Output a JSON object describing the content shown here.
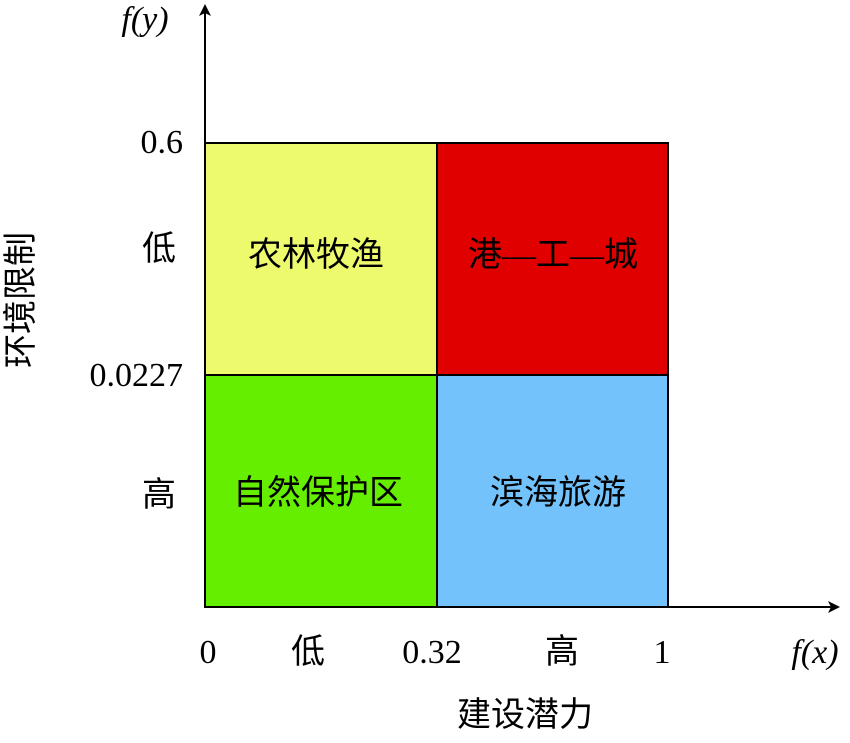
{
  "axes": {
    "y_label": "f(y)",
    "x_label": "f(x)",
    "y_title": "环境限制",
    "x_title": "建设潜力",
    "y_ticks": [
      "0.6",
      "低",
      "0.0227",
      "高"
    ],
    "x_ticks": [
      "0",
      "低",
      "0.32",
      "高",
      "1"
    ]
  },
  "regions": [
    {
      "label": "农林牧渔"
    },
    {
      "label": "港—工—城"
    },
    {
      "label": "自然保护区"
    },
    {
      "label": "滨海旅游"
    }
  ]
}
